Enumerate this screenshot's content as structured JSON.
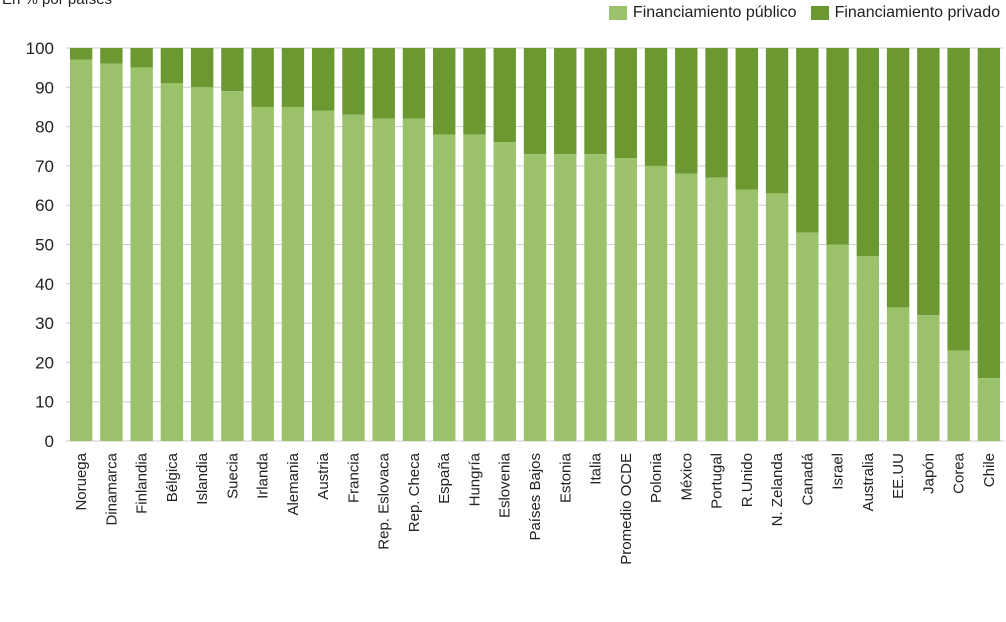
{
  "subtitle": "En % por países",
  "legend": {
    "public_label": "Financiamiento público",
    "private_label": "Financiamiento privado"
  },
  "colors": {
    "public": "#9bc26a",
    "private": "#6b9831"
  },
  "chart_data": {
    "type": "bar",
    "stacked": true,
    "title": "",
    "xlabel": "",
    "ylabel": "",
    "ylim": [
      0,
      100
    ],
    "yticks": [
      0,
      10,
      20,
      30,
      40,
      50,
      60,
      70,
      80,
      90,
      100
    ],
    "grid": true,
    "legend_position": "top-right",
    "categories": [
      "Noruega",
      "Dinamarca",
      "Finlandia",
      "Bélgica",
      "Islandia",
      "Suecia",
      "Irlanda",
      "Alemania",
      "Austria",
      "Francia",
      "Rep. Eslovaca",
      "Rep. Checa",
      "España",
      "Hungría",
      "Eslovenia",
      "Países Bajos",
      "Estonia",
      "Italia",
      "Promedio OCDE",
      "Polonia",
      "México",
      "Portugal",
      "R.Unido",
      "N. Zelanda",
      "Canadá",
      "Israel",
      "Australia",
      "EE.UU",
      "Japón",
      "Corea",
      "Chile"
    ],
    "series": [
      {
        "name": "Financiamiento público",
        "values": [
          97,
          96,
          95,
          91,
          90,
          89,
          85,
          85,
          84,
          83,
          82,
          82,
          78,
          78,
          76,
          73,
          73,
          73,
          72,
          70,
          68,
          67,
          64,
          63,
          53,
          50,
          47,
          34,
          32,
          23,
          16
        ]
      },
      {
        "name": "Financiamiento privado",
        "values": [
          3,
          4,
          5,
          9,
          10,
          11,
          15,
          15,
          16,
          17,
          18,
          18,
          22,
          22,
          24,
          27,
          27,
          27,
          28,
          30,
          32,
          33,
          36,
          37,
          47,
          50,
          53,
          66,
          68,
          77,
          84
        ]
      }
    ]
  }
}
